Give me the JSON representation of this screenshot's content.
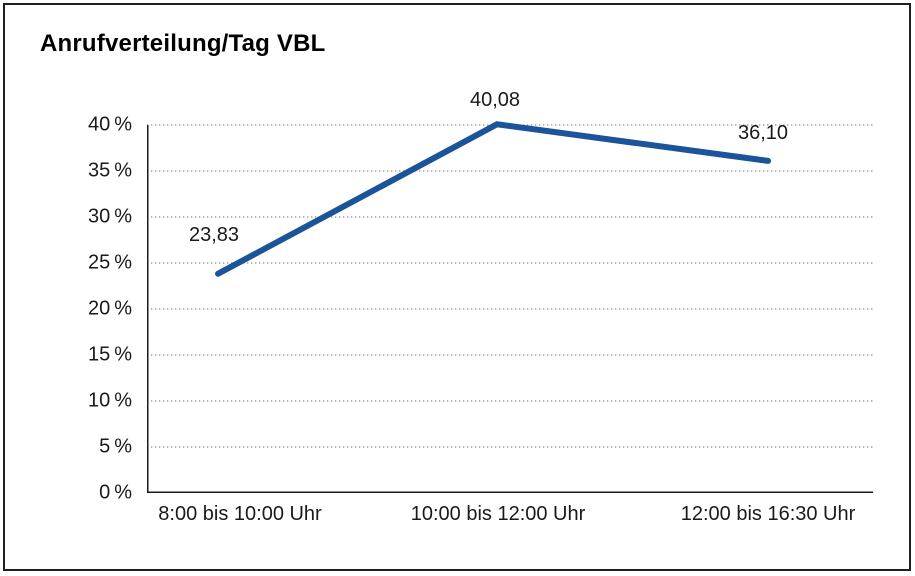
{
  "window": {
    "background_color": "#ffffff",
    "border_color": "#1f1f1f"
  },
  "header": {
    "title": "Anrufverteilung/Tag VBL"
  },
  "chart_data": {
    "type": "line",
    "title": "Anrufverteilung/Tag VBL",
    "categories": [
      "8:00 bis 10:00 Uhr",
      "10:00 bis 12:00 Uhr",
      "12:00 bis 16:30 Uhr"
    ],
    "values": [
      23.83,
      40.08,
      36.1
    ],
    "value_labels": [
      "23,83",
      "40,08",
      "36,10"
    ],
    "xlabel": "",
    "ylabel": "",
    "ylim": [
      0,
      40
    ],
    "y_tick_values": [
      0,
      5,
      10,
      15,
      20,
      25,
      30,
      35,
      40
    ],
    "y_tick_labels": [
      "0 %",
      "5 %",
      "10 %",
      "15 %",
      "20 %",
      "25 %",
      "30 %",
      "35 %",
      "40 %"
    ],
    "grid": "horizontal-dotted",
    "legend": "none",
    "line_color": "#1b5499",
    "axis_color": "#1a1a1a",
    "grid_color": "#8c8c8c",
    "text_color": "#1a1a1a"
  }
}
